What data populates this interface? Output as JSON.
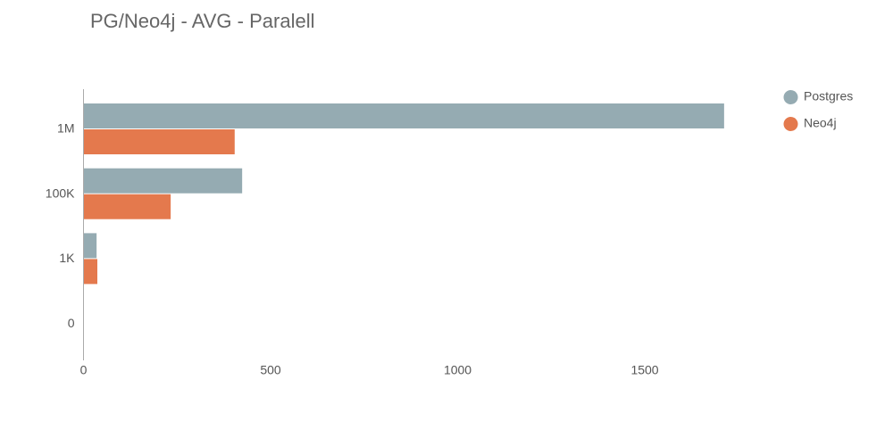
{
  "chart_data": {
    "type": "hbar",
    "title": "PG/Neo4j - AVG - Paralell",
    "categories": [
      "1M",
      "100K",
      "1K",
      "0"
    ],
    "series": [
      {
        "name": "Postgres",
        "color": "#95abb2",
        "values": [
          1712,
          424,
          35,
          null
        ]
      },
      {
        "name": "Neo4j",
        "color": "#e4794d",
        "values": [
          404,
          233,
          37,
          null
        ]
      }
    ],
    "xlim": [
      0,
      1850
    ],
    "xticks": [
      0,
      500,
      1000,
      1500
    ],
    "legend": "top-right"
  }
}
